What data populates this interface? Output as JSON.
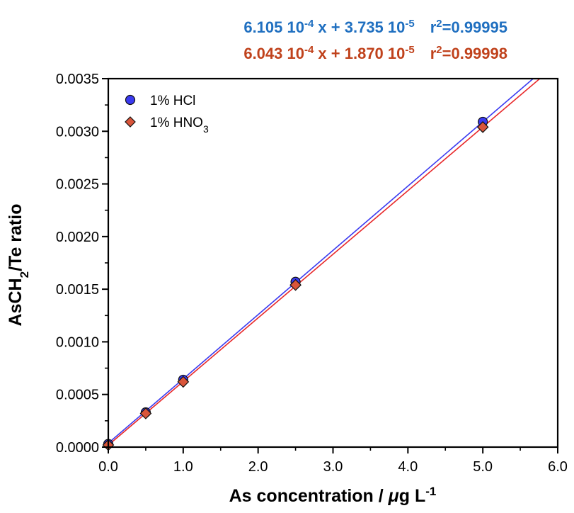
{
  "chart_data": {
    "type": "scatter",
    "xlabel": {
      "main": "As concentration / ",
      "mu": "μ",
      "mid": "g L",
      "sup": "-1"
    },
    "ylabel": {
      "main": "AsCH",
      "sub": "2",
      "tail": "/Te ratio"
    },
    "xlim": [
      0,
      6
    ],
    "ylim": [
      0,
      0.0035
    ],
    "x_ticks": [
      "0.0",
      "1.0",
      "2.0",
      "3.0",
      "4.0",
      "5.0",
      "6.0"
    ],
    "x_tick_values": [
      0,
      1,
      2,
      3,
      4,
      5,
      6
    ],
    "y_ticks": [
      "0.0000",
      "0.0005",
      "0.0010",
      "0.0015",
      "0.0020",
      "0.0025",
      "0.0030",
      "0.0035"
    ],
    "y_tick_values": [
      0,
      0.0005,
      0.001,
      0.0015,
      0.002,
      0.0025,
      0.003,
      0.0035
    ],
    "grid": false,
    "legend_position": "top-left",
    "series": [
      {
        "name": "1% HCl",
        "marker": "circle",
        "color": "#3a3af0",
        "line_color": "#3a3af0",
        "x": [
          0,
          0.5,
          1.0,
          2.5,
          5.0
        ],
        "y": [
          3e-05,
          0.00033,
          0.00064,
          0.00157,
          0.00309
        ],
        "fit": {
          "slope": 0.0006105,
          "intercept": 3.735e-05
        },
        "equation": {
          "a": "6.105 10",
          "a_exp": "-4",
          "b": " x + 3.735 10",
          "b_exp": "-5",
          "r": "r",
          "r_exp": "2",
          "r_val": "=0.99995"
        }
      },
      {
        "name_html": {
          "main": "1% HNO",
          "sub": "3"
        },
        "marker": "diamond",
        "color": "#d9553a",
        "line_color": "#e8282a",
        "x": [
          0,
          0.5,
          1.0,
          2.5,
          5.0
        ],
        "y": [
          2e-05,
          0.00032,
          0.00062,
          0.00154,
          0.00304
        ],
        "fit": {
          "slope": 0.0006043,
          "intercept": 1.87e-05
        },
        "equation": {
          "a": "6.043 10",
          "a_exp": "-4",
          "b": " x + 1.870 10",
          "b_exp": "-5",
          "r": "r",
          "r_exp": "2",
          "r_val": "=0.99998"
        }
      }
    ]
  },
  "colors": {
    "eq1": "#1f6fc0",
    "eq2": "#c0421c"
  }
}
